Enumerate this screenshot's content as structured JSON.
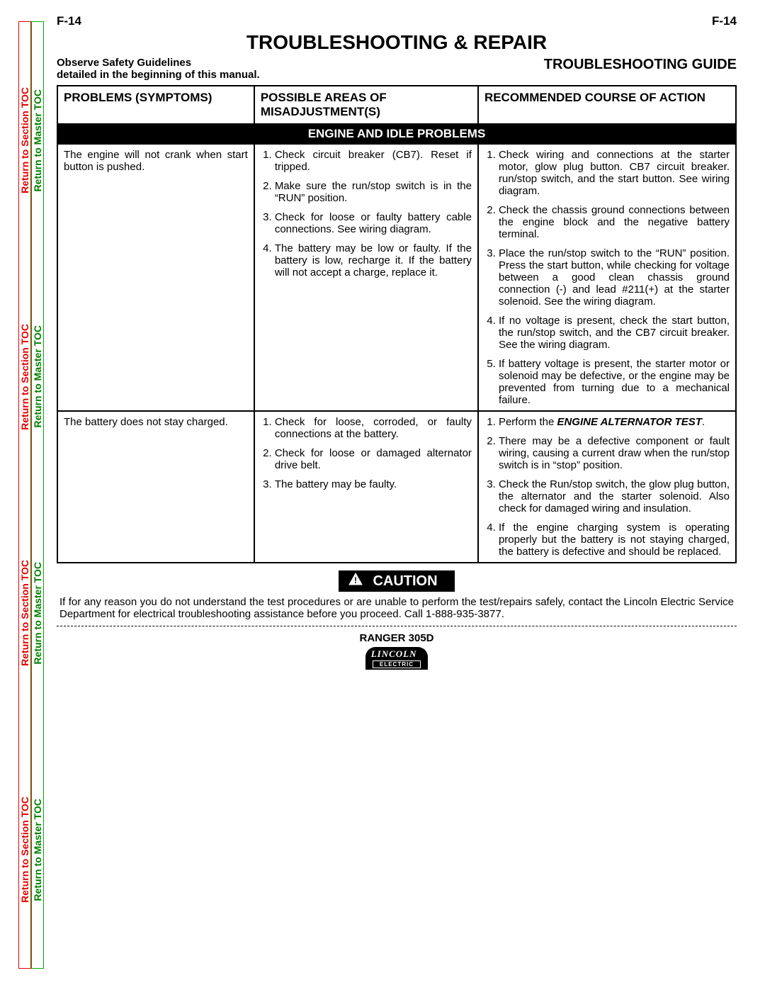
{
  "page_num": "F-14",
  "sidebar": {
    "section_toc": "Return to Section TOC",
    "master_toc": "Return to Master TOC",
    "colors": {
      "section": "#e40000",
      "master": "#008000"
    }
  },
  "title": "TROUBLESHOOTING & REPAIR",
  "safety_note_line1": "Observe Safety Guidelines",
  "safety_note_line2": "detailed in the beginning of this manual.",
  "guide_label": "TROUBLESHOOTING GUIDE",
  "table": {
    "headers": {
      "col1": "PROBLEMS (SYMPTOMS)",
      "col2": "POSSIBLE AREAS OF MISADJUSTMENT(S)",
      "col3": "RECOMMENDED COURSE OF ACTION"
    },
    "section_heading": "ENGINE AND IDLE PROBLEMS",
    "rows": [
      {
        "symptom": "The engine will not crank when start button is pushed.",
        "misadjustments": [
          "Check circuit breaker (CB7). Reset if tripped.",
          "Make sure the run/stop switch is in the “RUN” position.",
          "Check for loose or faulty battery cable connections.  See wiring diagram.",
          "The battery may be low or faulty.  If the battery is low, recharge it.  If the battery will not accept a charge, replace it."
        ],
        "actions": [
          "Check wiring and connections at the starter motor, glow plug button. CB7 circuit breaker. run/stop switch, and the start button.  See wiring diagram.",
          "Check the chassis ground connections between the engine block and the negative battery terminal.",
          "Place the run/stop switch to the “RUN” position.  Press the start button, while checking for voltage between a good clean chassis ground connection (-) and lead #211(+) at the starter solenoid.  See the wiring diagram.",
          "If no voltage is present, check the start button, the run/stop switch, and the CB7 circuit breaker.  See the wiring diagram.",
          "If battery voltage is present, the starter motor or solenoid may be defective, or the engine may be prevented from turning due to a mechanical failure."
        ]
      },
      {
        "symptom": "The battery does not stay charged.",
        "misadjustments": [
          "Check for loose, corroded, or faulty connections at the battery.",
          "Check for loose or damaged alternator drive belt.",
          "The battery may be faulty."
        ],
        "actions_html": [
          "Perform the <b><i>ENGINE ALTERNATOR TEST</i></b>.",
          "There may be a defective component or fault wiring, causing a current draw when the run/stop switch is in “stop” position.",
          "Check the Run/stop switch, the glow plug button, the alternator and the starter solenoid.  Also check for damaged wiring and insulation.",
          "If the engine charging system is operating properly but the battery is not staying charged, the battery is defective and should be replaced."
        ]
      }
    ]
  },
  "caution": {
    "label": "CAUTION",
    "text": "If for any reason you do not understand the test procedures or are unable to perform the test/repairs safely, contact the Lincoln Electric Service Department for electrical troubleshooting assistance before you proceed.  Call 1-888-935-3877."
  },
  "footer": {
    "model": "RANGER 305D",
    "logo_top": "LINCOLN",
    "logo_bottom": "ELECTRIC"
  }
}
